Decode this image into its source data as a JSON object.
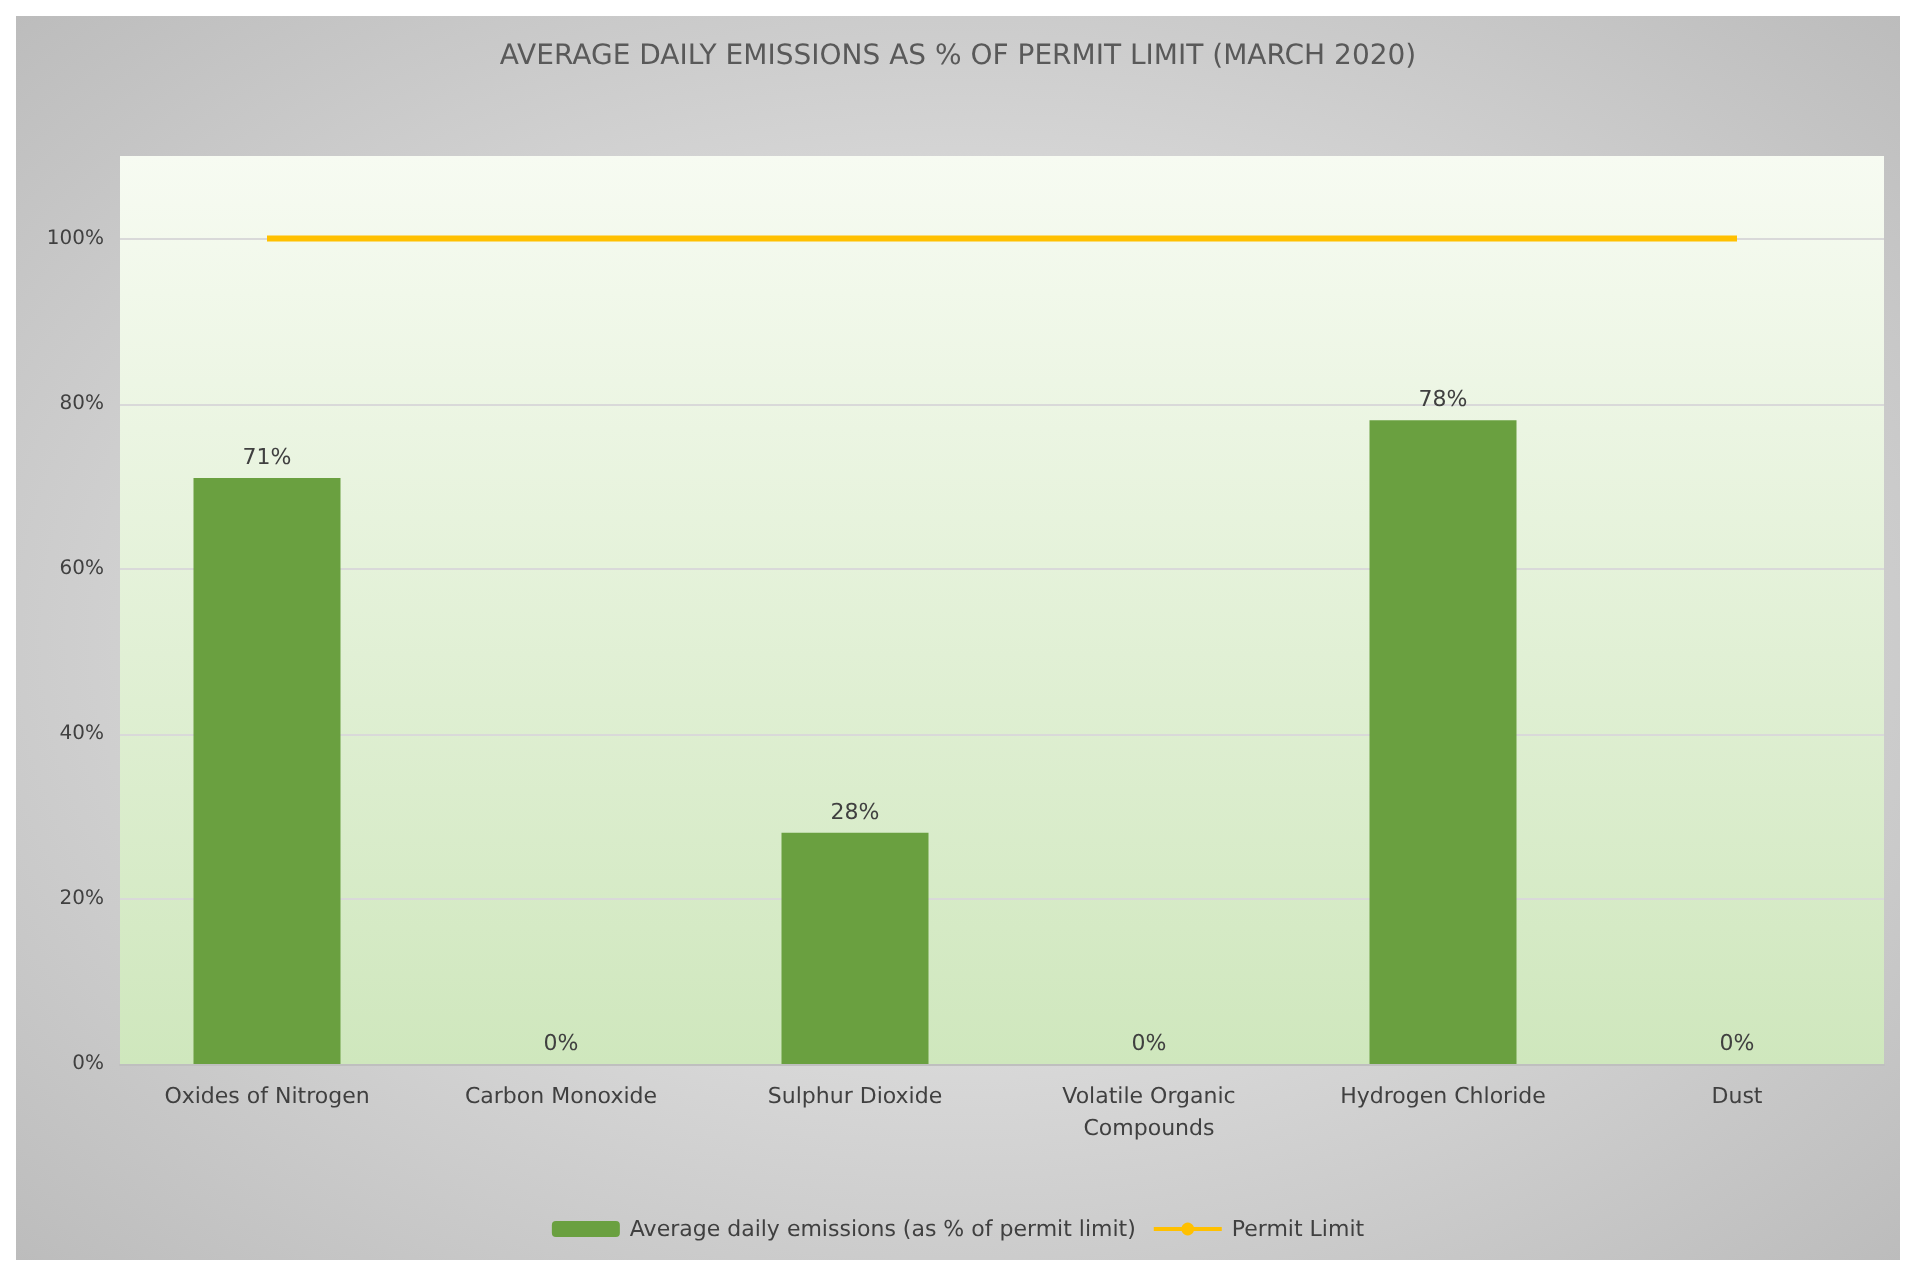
{
  "chart_data": {
    "type": "bar",
    "title": "AVERAGE DAILY EMISSIONS AS % OF PERMIT LIMIT (MARCH 2020)",
    "categories": [
      "Oxides of Nitrogen",
      "Carbon Monoxide",
      "Sulphur Dioxide",
      "Volatile Organic\nCompounds",
      "Hydrogen Chloride",
      "Dust"
    ],
    "series": [
      {
        "name": "Average daily emissions (as % of permit limit)",
        "color": "#6aa040",
        "values": [
          71,
          0,
          28,
          0,
          78,
          0
        ],
        "value_labels": [
          "71%",
          "0%",
          "28%",
          "0%",
          "78%",
          "0%"
        ]
      },
      {
        "name": "Permit Limit",
        "type": "line",
        "color": "#ffc000",
        "values": [
          100,
          100,
          100,
          100,
          100,
          100
        ]
      }
    ],
    "ylim": [
      0,
      110
    ],
    "yticks": [
      {
        "value": 0,
        "label": "0%"
      },
      {
        "value": 20,
        "label": "20%"
      },
      {
        "value": 40,
        "label": "40%"
      },
      {
        "value": 60,
        "label": "60%"
      },
      {
        "value": 80,
        "label": "80%"
      },
      {
        "value": 100,
        "label": "100%"
      }
    ],
    "grid": "y",
    "legend": "bottom",
    "marker": "none"
  }
}
